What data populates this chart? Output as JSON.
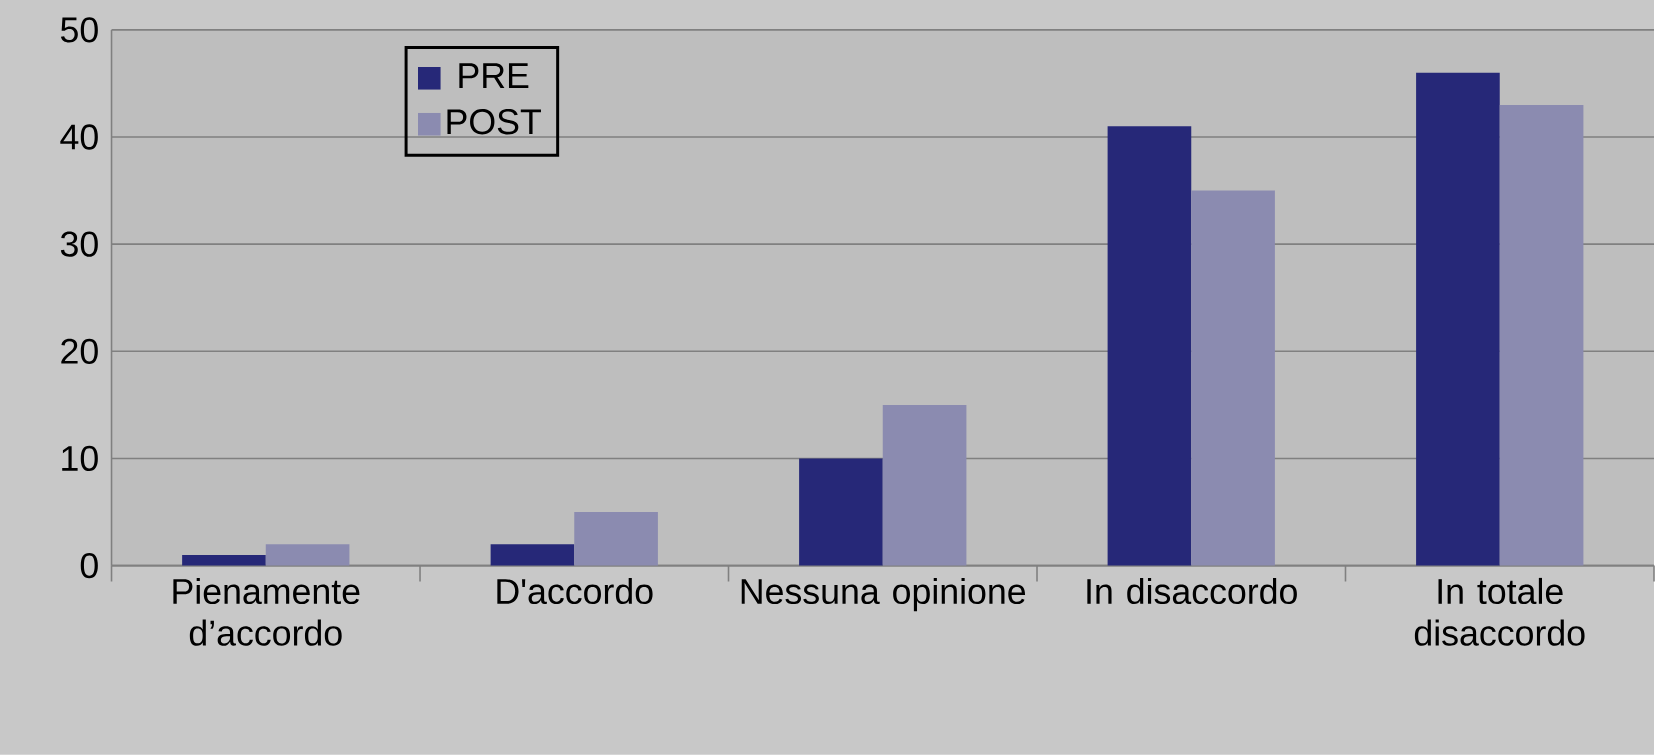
{
  "chart_data": {
    "type": "bar",
    "categories": [
      "Pienamente d’accordo",
      "D'accordo",
      "Nessuna opinione",
      "In disaccordo",
      "In totale disaccordo"
    ],
    "series": [
      {
        "name": "PRE",
        "color": "#262878",
        "values": [
          1,
          2,
          10,
          41,
          46
        ]
      },
      {
        "name": "POST",
        "color": "#8b8bb0",
        "values": [
          2,
          5,
          15,
          35,
          43
        ]
      }
    ],
    "ylim": [
      0,
      50
    ],
    "yticks": [
      0,
      10,
      20,
      30,
      40,
      50
    ],
    "grid": "y",
    "legend": "top left"
  }
}
